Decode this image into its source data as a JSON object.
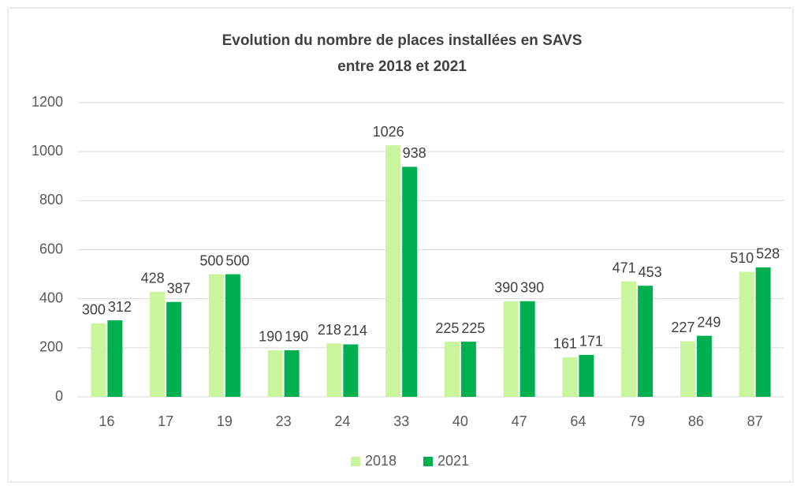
{
  "chart_data": {
    "type": "bar",
    "title": [
      "Evolution du nombre de places installées en SAVS",
      "entre 2018 et 2021"
    ],
    "categories": [
      "16",
      "17",
      "19",
      "23",
      "24",
      "33",
      "40",
      "47",
      "64",
      "79",
      "86",
      "87"
    ],
    "series": [
      {
        "name": "2018",
        "color": "#c9f59c",
        "values": [
          300,
          428,
          500,
          190,
          218,
          1026,
          225,
          390,
          161,
          471,
          227,
          510
        ]
      },
      {
        "name": "2021",
        "color": "#00b050",
        "values": [
          312,
          387,
          500,
          190,
          214,
          938,
          225,
          390,
          171,
          453,
          249,
          528
        ]
      }
    ],
    "ylim": [
      0,
      1200
    ],
    "yticks": [
      0,
      200,
      400,
      600,
      800,
      1000,
      1200
    ],
    "grid": true,
    "legend": "bottom"
  }
}
